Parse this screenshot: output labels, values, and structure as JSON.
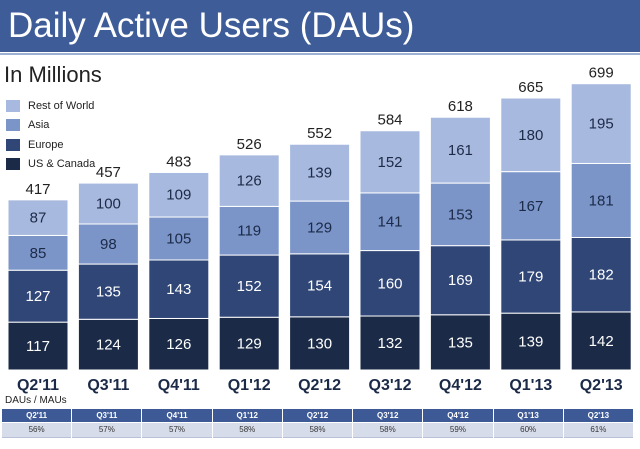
{
  "title": "Daily Active Users (DAUs)",
  "subtitle": "In Millions",
  "colors": {
    "us_canada": "#1b2a47",
    "europe": "#2f4677",
    "asia": "#7b95c9",
    "rest_of_world": "#a8b9df",
    "title_bar": "#3e5c98"
  },
  "chart_data": {
    "type": "bar",
    "stacked": true,
    "title": "Daily Active Users (DAUs)",
    "ylabel": "In Millions",
    "xlabel": "",
    "categories": [
      "Q2'11",
      "Q3'11",
      "Q4'11",
      "Q1'12",
      "Q2'12",
      "Q3'12",
      "Q4'12",
      "Q1'13",
      "Q2'13"
    ],
    "series": [
      {
        "name": "US & Canada",
        "values": [
          117,
          124,
          126,
          129,
          130,
          132,
          135,
          139,
          142
        ]
      },
      {
        "name": "Europe",
        "values": [
          127,
          135,
          143,
          152,
          154,
          160,
          169,
          179,
          182
        ]
      },
      {
        "name": "Asia",
        "values": [
          85,
          98,
          105,
          119,
          129,
          141,
          153,
          167,
          181
        ]
      },
      {
        "name": "Rest of World",
        "values": [
          87,
          100,
          109,
          126,
          139,
          152,
          161,
          180,
          195
        ]
      }
    ],
    "totals": [
      417,
      457,
      483,
      526,
      552,
      584,
      618,
      665,
      699
    ],
    "legend": [
      "Rest of World",
      "Asia",
      "Europe",
      "US & Canada"
    ],
    "legend_position": "top-left"
  },
  "ratio_table": {
    "label": "DAUs / MAUs",
    "headers": [
      "Q2'11",
      "Q3'11",
      "Q4'11",
      "Q1'12",
      "Q2'12",
      "Q3'12",
      "Q4'12",
      "Q1'13",
      "Q2'13"
    ],
    "values": [
      "56%",
      "57%",
      "57%",
      "58%",
      "58%",
      "58%",
      "59%",
      "60%",
      "61%"
    ]
  }
}
